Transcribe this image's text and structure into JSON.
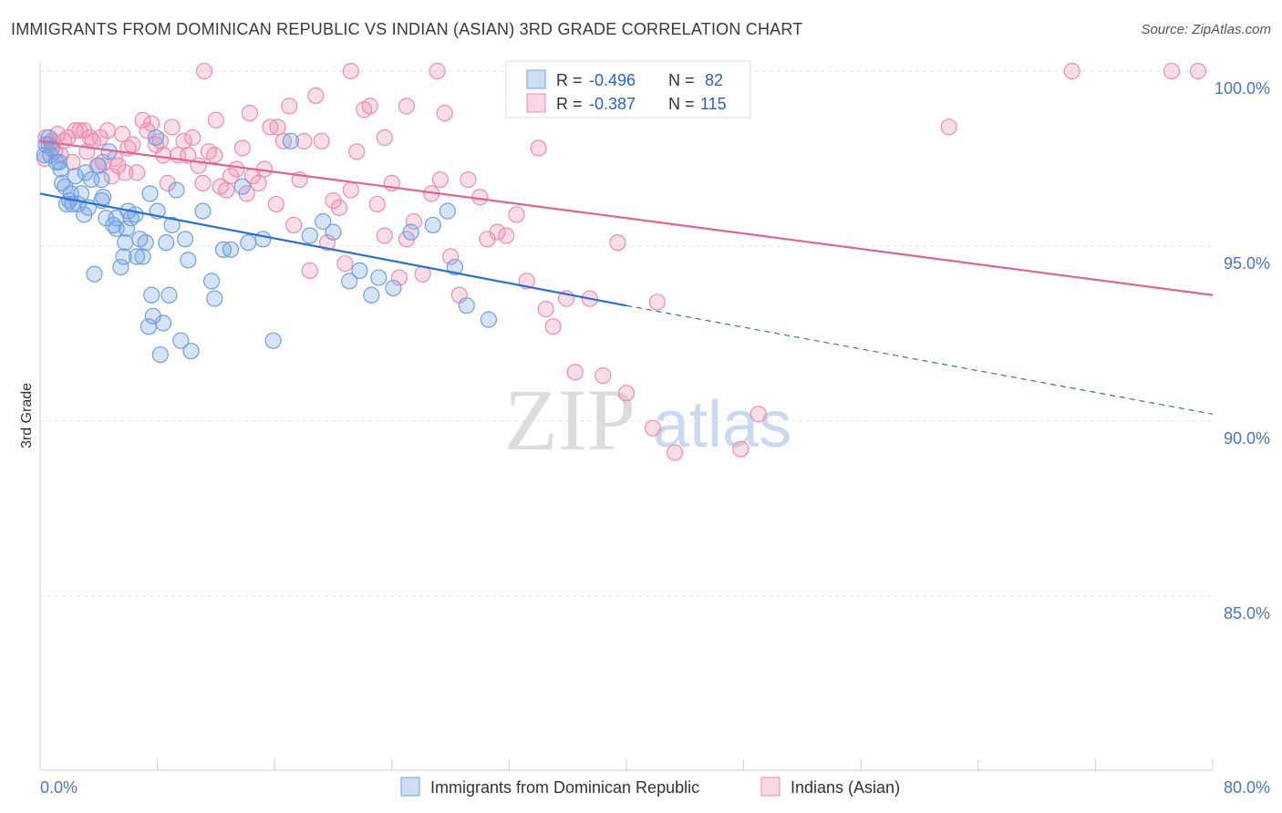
{
  "title": "IMMIGRANTS FROM DOMINICAN REPUBLIC VS INDIAN (ASIAN) 3RD GRADE CORRELATION CHART",
  "source": "Source: ZipAtlas.com",
  "watermark": {
    "zip": "ZIP",
    "atlas": "atlas"
  },
  "colors": {
    "blue": "#6fa1e0",
    "blue_fill": "rgba(111,161,224,0.30)",
    "blue_line": "#2a6fd6",
    "pink": "#ee8db0",
    "pink_fill": "rgba(238,141,176,0.30)",
    "pink_line": "#e0648f"
  },
  "legend": {
    "rows": [
      {
        "r_label": "R =",
        "r_value": "-0.496",
        "n_label": "N =",
        "n_value": "82"
      },
      {
        "r_label": "R =",
        "r_value": "-0.387",
        "n_label": "N =",
        "n_value": "115"
      }
    ]
  },
  "bottom_legend": [
    "Immigrants from Dominican Republic",
    "Indians (Asian)"
  ],
  "chart_data": {
    "type": "scatter",
    "title": "IMMIGRANTS FROM DOMINICAN REPUBLIC VS INDIAN (ASIAN) 3RD GRADE CORRELATION CHART",
    "ylabel": "3rd Grade",
    "xlabel": "",
    "xlim": [
      0,
      80
    ],
    "ylim": [
      80,
      100.8
    ],
    "x_tick_labels": [
      "0.0%",
      "80.0%"
    ],
    "y_ticks": [
      85,
      90,
      95,
      100
    ],
    "y_tick_labels": [
      "85.0%",
      "90.0%",
      "95.0%",
      "100.0%"
    ],
    "grid": true,
    "series": [
      {
        "name": "Immigrants from Dominican Republic",
        "r": -0.496,
        "n": 82,
        "trend": {
          "x0": 0,
          "y0": 96.5,
          "x1": 40,
          "y1": 93.3,
          "dash_to_x": 80,
          "dash_to_y": 90.2
        },
        "points": [
          [
            0.3,
            97.6
          ],
          [
            0.4,
            97.9
          ],
          [
            0.6,
            98.1
          ],
          [
            0.7,
            97.6
          ],
          [
            0.8,
            97.8
          ],
          [
            1.1,
            97.4
          ],
          [
            1.3,
            97.4
          ],
          [
            1.4,
            97.2
          ],
          [
            1.5,
            96.8
          ],
          [
            1.7,
            96.7
          ],
          [
            1.8,
            96.2
          ],
          [
            2.1,
            96.5
          ],
          [
            2.2,
            96.2
          ],
          [
            2.4,
            97.0
          ],
          [
            2.6,
            96.2
          ],
          [
            2.8,
            96.5
          ],
          [
            3.0,
            95.9
          ],
          [
            3.1,
            97.1
          ],
          [
            3.3,
            96.1
          ],
          [
            3.5,
            96.9
          ],
          [
            3.7,
            94.2
          ],
          [
            4.0,
            97.3
          ],
          [
            4.2,
            96.9
          ],
          [
            4.3,
            96.4
          ],
          [
            4.5,
            95.8
          ],
          [
            4.7,
            97.7
          ],
          [
            5.0,
            95.6
          ],
          [
            5.2,
            95.5
          ],
          [
            5.5,
            94.4
          ],
          [
            5.7,
            94.7
          ],
          [
            5.8,
            95.1
          ],
          [
            5.9,
            95.5
          ],
          [
            6.0,
            96.0
          ],
          [
            6.2,
            95.8
          ],
          [
            6.6,
            94.7
          ],
          [
            6.8,
            95.2
          ],
          [
            7.0,
            94.7
          ],
          [
            7.2,
            95.1
          ],
          [
            7.4,
            92.7
          ],
          [
            7.6,
            93.6
          ],
          [
            7.7,
            93.0
          ],
          [
            8.0,
            96.0
          ],
          [
            8.2,
            91.9
          ],
          [
            8.4,
            92.8
          ],
          [
            8.6,
            95.1
          ],
          [
            8.8,
            93.6
          ],
          [
            9.0,
            95.6
          ],
          [
            9.3,
            96.6
          ],
          [
            9.6,
            92.3
          ],
          [
            9.9,
            95.2
          ],
          [
            10.1,
            94.6
          ],
          [
            10.3,
            92.0
          ],
          [
            11.1,
            96.0
          ],
          [
            11.7,
            94.0
          ],
          [
            11.9,
            93.5
          ],
          [
            12.5,
            94.9
          ],
          [
            13.0,
            94.9
          ],
          [
            13.8,
            96.7
          ],
          [
            14.2,
            95.1
          ],
          [
            15.2,
            95.2
          ],
          [
            15.9,
            92.3
          ],
          [
            17.1,
            98.0
          ],
          [
            18.4,
            95.3
          ],
          [
            19.3,
            95.7
          ],
          [
            20.0,
            95.4
          ],
          [
            21.1,
            94.0
          ],
          [
            21.8,
            94.3
          ],
          [
            22.6,
            93.6
          ],
          [
            23.1,
            94.1
          ],
          [
            24.1,
            93.8
          ],
          [
            25.3,
            95.4
          ],
          [
            26.8,
            95.6
          ],
          [
            27.8,
            96.0
          ],
          [
            28.3,
            94.4
          ],
          [
            29.1,
            93.3
          ],
          [
            30.6,
            92.9
          ],
          [
            7.9,
            98.1
          ],
          [
            7.5,
            96.5
          ],
          [
            6.5,
            95.9
          ],
          [
            5.2,
            95.8
          ],
          [
            4.2,
            96.3
          ],
          [
            2.0,
            96.3
          ]
        ]
      },
      {
        "name": "Indians (Asian)",
        "r": -0.387,
        "n": 115,
        "trend": {
          "x0": 0,
          "y0": 98.0,
          "x1": 80,
          "y1": 93.6
        },
        "points": [
          [
            0.3,
            97.5
          ],
          [
            0.4,
            98.1
          ],
          [
            0.6,
            97.9
          ],
          [
            0.8,
            98.0
          ],
          [
            1.0,
            97.7
          ],
          [
            1.2,
            98.2
          ],
          [
            1.4,
            97.6
          ],
          [
            1.6,
            98.0
          ],
          [
            1.9,
            98.1
          ],
          [
            2.2,
            97.4
          ],
          [
            2.4,
            98.3
          ],
          [
            2.7,
            98.3
          ],
          [
            3.0,
            98.3
          ],
          [
            3.2,
            97.7
          ],
          [
            3.4,
            98.1
          ],
          [
            3.6,
            98.0
          ],
          [
            3.9,
            97.3
          ],
          [
            4.1,
            98.1
          ],
          [
            4.3,
            97.4
          ],
          [
            4.6,
            98.3
          ],
          [
            4.9,
            97.0
          ],
          [
            5.1,
            97.5
          ],
          [
            5.3,
            97.3
          ],
          [
            5.6,
            98.2
          ],
          [
            5.8,
            97.1
          ],
          [
            6.0,
            97.8
          ],
          [
            6.3,
            97.9
          ],
          [
            6.6,
            97.1
          ],
          [
            7.0,
            98.6
          ],
          [
            7.3,
            98.3
          ],
          [
            7.6,
            98.5
          ],
          [
            7.9,
            97.9
          ],
          [
            8.2,
            98.0
          ],
          [
            8.4,
            97.6
          ],
          [
            8.7,
            96.8
          ],
          [
            9.0,
            98.4
          ],
          [
            9.4,
            97.6
          ],
          [
            9.8,
            98.0
          ],
          [
            10.1,
            97.6
          ],
          [
            10.4,
            98.1
          ],
          [
            10.8,
            97.3
          ],
          [
            11.1,
            96.8
          ],
          [
            11.5,
            97.7
          ],
          [
            11.9,
            97.6
          ],
          [
            12.3,
            96.7
          ],
          [
            12.7,
            96.6
          ],
          [
            13.0,
            97.0
          ],
          [
            13.4,
            97.2
          ],
          [
            13.8,
            97.8
          ],
          [
            14.1,
            96.5
          ],
          [
            14.5,
            97.0
          ],
          [
            14.9,
            96.8
          ],
          [
            15.3,
            97.2
          ],
          [
            15.7,
            98.4
          ],
          [
            16.1,
            96.2
          ],
          [
            16.6,
            98.0
          ],
          [
            17.0,
            99.0
          ],
          [
            17.3,
            95.6
          ],
          [
            17.7,
            96.9
          ],
          [
            18.0,
            98.0
          ],
          [
            18.4,
            94.3
          ],
          [
            18.8,
            99.3
          ],
          [
            19.2,
            98.0
          ],
          [
            19.6,
            95.1
          ],
          [
            20.0,
            96.3
          ],
          [
            20.4,
            96.1
          ],
          [
            20.8,
            94.5
          ],
          [
            21.2,
            96.6
          ],
          [
            21.6,
            97.7
          ],
          [
            22.1,
            98.9
          ],
          [
            22.5,
            99.0
          ],
          [
            23.0,
            96.2
          ],
          [
            23.5,
            95.3
          ],
          [
            24.0,
            96.8
          ],
          [
            24.5,
            94.1
          ],
          [
            25.0,
            95.2
          ],
          [
            25.5,
            95.7
          ],
          [
            26.1,
            94.2
          ],
          [
            26.7,
            96.5
          ],
          [
            27.3,
            96.9
          ],
          [
            28.0,
            94.7
          ],
          [
            28.6,
            93.6
          ],
          [
            29.2,
            96.9
          ],
          [
            30.0,
            96.4
          ],
          [
            30.5,
            95.2
          ],
          [
            31.2,
            95.4
          ],
          [
            31.8,
            95.3
          ],
          [
            32.5,
            95.9
          ],
          [
            33.2,
            94.0
          ],
          [
            34.0,
            97.8
          ],
          [
            34.5,
            93.2
          ],
          [
            35.0,
            92.7
          ],
          [
            35.9,
            93.5
          ],
          [
            36.5,
            91.4
          ],
          [
            37.5,
            93.5
          ],
          [
            38.4,
            91.3
          ],
          [
            39.4,
            95.1
          ],
          [
            40.0,
            90.8
          ],
          [
            41.8,
            89.8
          ],
          [
            42.1,
            93.4
          ],
          [
            43.3,
            89.1
          ],
          [
            46.6,
            99.2
          ],
          [
            47.8,
            89.2
          ],
          [
            49.0,
            90.2
          ],
          [
            70.4,
            100.0
          ],
          [
            77.2,
            100.0
          ],
          [
            79.0,
            100.0
          ],
          [
            62.0,
            98.4
          ],
          [
            47.5,
            100.0
          ],
          [
            27.1,
            100.0
          ],
          [
            21.2,
            100.0
          ],
          [
            11.2,
            100.0
          ],
          [
            25.0,
            99.0
          ],
          [
            23.5,
            98.1
          ],
          [
            14.3,
            98.8
          ],
          [
            12.0,
            98.6
          ],
          [
            27.6,
            98.8
          ],
          [
            16.2,
            98.4
          ]
        ]
      }
    ]
  }
}
